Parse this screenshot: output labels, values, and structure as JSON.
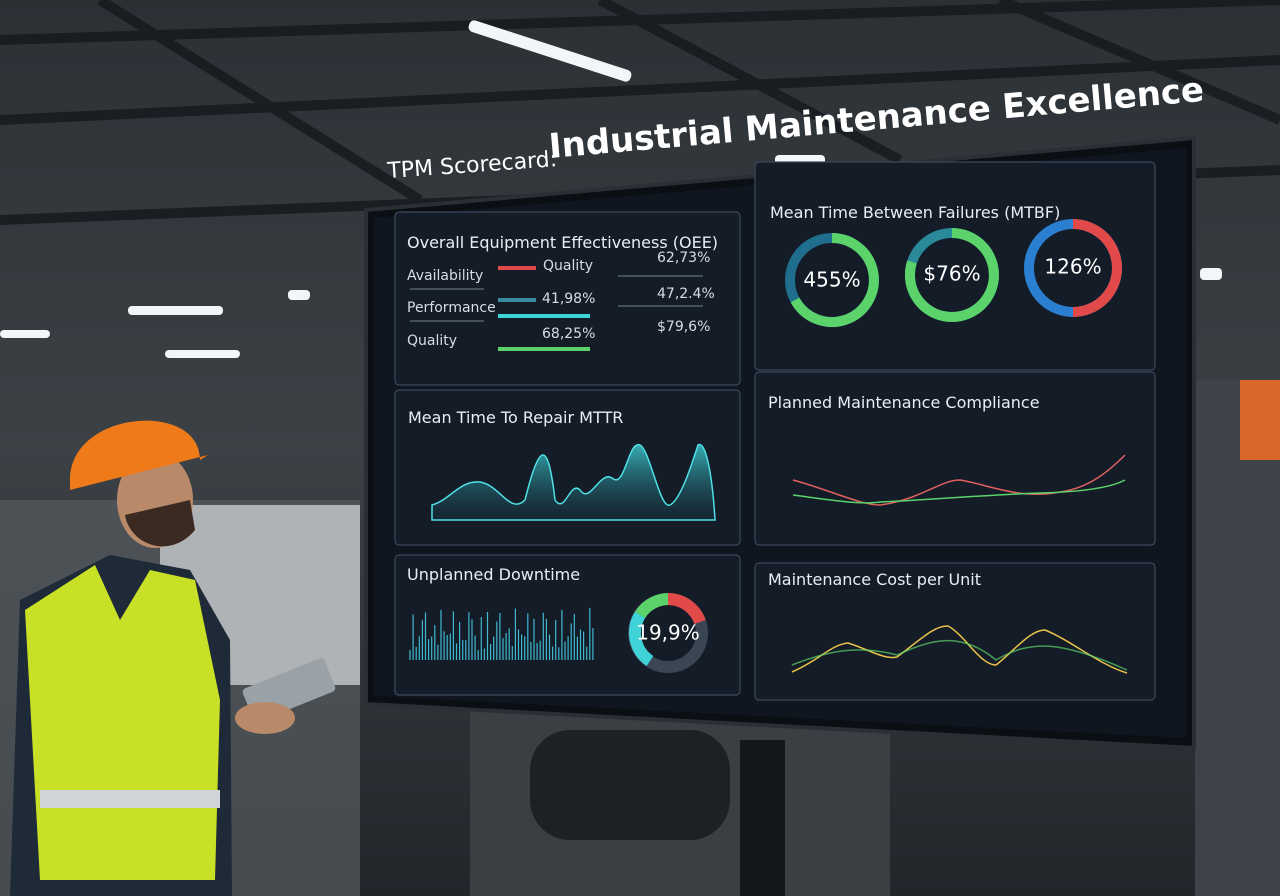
{
  "title_prefix": "TPM Scorecard:",
  "title": "Industrial Maintenance Excellence",
  "panels": {
    "oee": {
      "title": "Overall Equipment Effectiveness (OEE)",
      "labels": [
        "Availability",
        "Performance",
        "Quality"
      ],
      "legend": "Quality",
      "values": [
        "62,73%",
        "41,98%",
        "47,2.4%",
        "68,25%",
        "$79,6%"
      ]
    },
    "mtbf": {
      "title": "Mean Time Between Failures (MTBF)",
      "gauges": [
        "455%",
        "$76%",
        "126%"
      ]
    },
    "mttr": {
      "title": "Mean Time To Repair MTTR"
    },
    "pmc": {
      "title": "Planned Maintenance Compliance"
    },
    "downtime": {
      "title": "Unplanned Downtime",
      "gauge": "19,9%"
    },
    "cost": {
      "title": "Maintenance Cost per Unit"
    }
  }
}
